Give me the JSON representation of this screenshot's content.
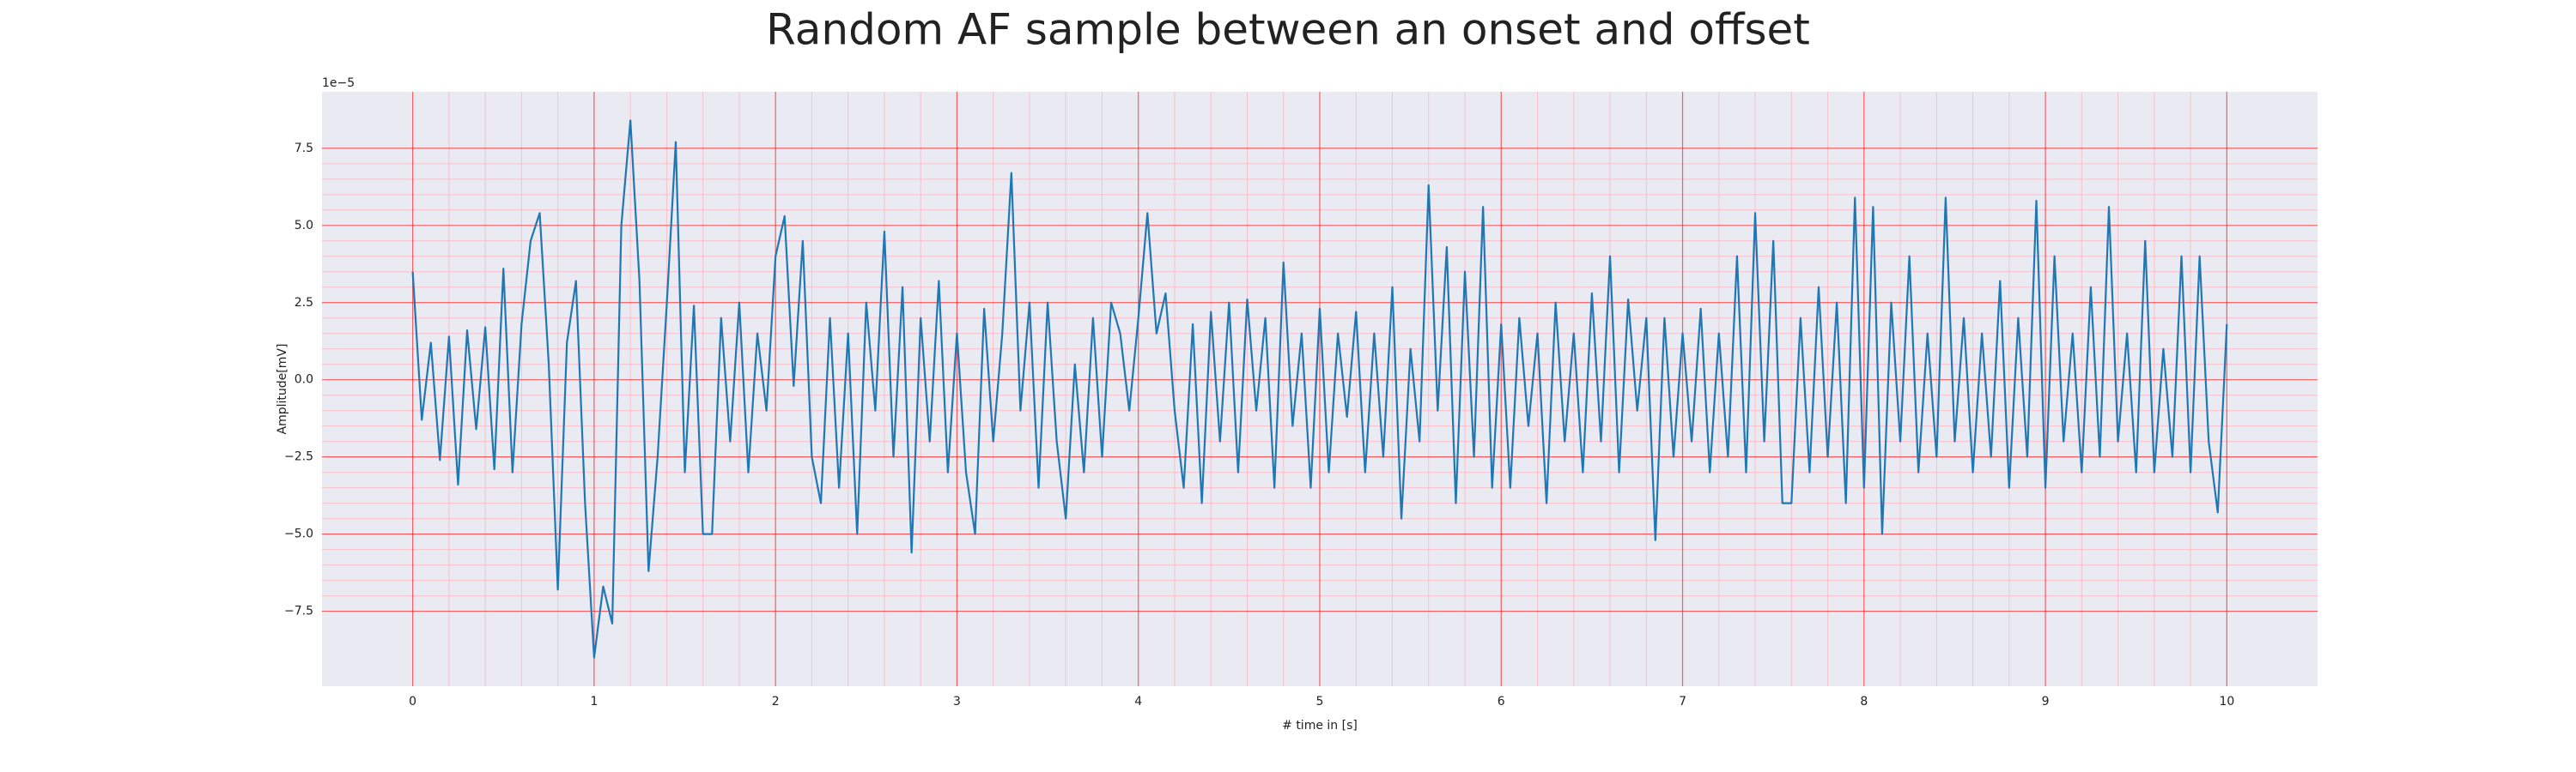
{
  "chart_data": {
    "type": "line",
    "title": "Random AF sample between an onset and offset",
    "xlabel": "# time in [s]",
    "ylabel": "Amplitude[mV]",
    "y_offset_label": "1e−5",
    "x": [
      0,
      0.05,
      0.1,
      0.15,
      0.2,
      0.25,
      0.3,
      0.35,
      0.4,
      0.45,
      0.5,
      0.55,
      0.6,
      0.65,
      0.7,
      0.75,
      0.8,
      0.85,
      0.9,
      0.95,
      1,
      1.05,
      1.1,
      1.15,
      1.2,
      1.25,
      1.3,
      1.35,
      1.4,
      1.45,
      1.5,
      1.55,
      1.6,
      1.65,
      1.7,
      1.75,
      1.8,
      1.85,
      1.9,
      1.95,
      2,
      2.05,
      2.1,
      2.15,
      2.2,
      2.25,
      2.3,
      2.35,
      2.4,
      2.45,
      2.5,
      2.55,
      2.6,
      2.65,
      2.7,
      2.75,
      2.8,
      2.85,
      2.9,
      2.95,
      3,
      3.05,
      3.1,
      3.15,
      3.2,
      3.25,
      3.3,
      3.35,
      3.4,
      3.45,
      3.5,
      3.55,
      3.6,
      3.65,
      3.7,
      3.75,
      3.8,
      3.85,
      3.9,
      3.95,
      4,
      4.05,
      4.1,
      4.15,
      4.2,
      4.25,
      4.3,
      4.35,
      4.4,
      4.45,
      4.5,
      4.55,
      4.6,
      4.65,
      4.7,
      4.75,
      4.8,
      4.85,
      4.9,
      4.95,
      5,
      5.05,
      5.1,
      5.15,
      5.2,
      5.25,
      5.3,
      5.35,
      5.4,
      5.45,
      5.5,
      5.55,
      5.6,
      5.65,
      5.7,
      5.75,
      5.8,
      5.85,
      5.9,
      5.95,
      6,
      6.05,
      6.1,
      6.15,
      6.2,
      6.25,
      6.3,
      6.35,
      6.4,
      6.45,
      6.5,
      6.55,
      6.6,
      6.65,
      6.7,
      6.75,
      6.8,
      6.85,
      6.9,
      6.95,
      7,
      7.05,
      7.1,
      7.15,
      7.2,
      7.25,
      7.3,
      7.35,
      7.4,
      7.45,
      7.5,
      7.55,
      7.6,
      7.65,
      7.7,
      7.75,
      7.8,
      7.85,
      7.9,
      7.95,
      8,
      8.05,
      8.1,
      8.15,
      8.2,
      8.25,
      8.3,
      8.35,
      8.4,
      8.45,
      8.5,
      8.55,
      8.6,
      8.65,
      8.7,
      8.75,
      8.8,
      8.85,
      8.9,
      8.95,
      9,
      9.05,
      9.1,
      9.15,
      9.2,
      9.25,
      9.3,
      9.35,
      9.4,
      9.45,
      9.5,
      9.55,
      9.6,
      9.65,
      9.7,
      9.75,
      9.8,
      9.85,
      9.9,
      9.95,
      10
    ],
    "series": [
      {
        "color": "#1f77b4",
        "values": [
          3.5,
          -1.3,
          1.2,
          -2.6,
          1.4,
          -3.4,
          1.6,
          -1.6,
          1.7,
          -2.9,
          3.6,
          -3.0,
          1.8,
          4.5,
          5.4,
          0.5,
          -6.8,
          1.2,
          3.2,
          -4.0,
          -9.0,
          -6.7,
          -7.9,
          5.0,
          8.4,
          3.2,
          -6.2,
          -2.5,
          2.4,
          7.7,
          -3.0,
          2.4,
          -5.0,
          -5.0,
          2.0,
          -2.0,
          2.5,
          -3.0,
          1.5,
          -1.0,
          4.0,
          5.3,
          -0.2,
          4.5,
          -2.5,
          -4.0,
          2.0,
          -3.5,
          1.5,
          -5.0,
          2.5,
          -1.0,
          4.8,
          -2.5,
          3.0,
          -5.6,
          2.0,
          -2.0,
          3.2,
          -3.0,
          1.5,
          -3.0,
          -5.0,
          2.3,
          -2.0,
          1.5,
          6.7,
          -1.0,
          2.5,
          -3.5,
          2.5,
          -2.0,
          -4.5,
          0.5,
          -3.0,
          2.0,
          -2.5,
          2.5,
          1.5,
          -1.0,
          2.0,
          5.4,
          1.5,
          2.8,
          -1.0,
          -3.5,
          1.8,
          -4.0,
          2.2,
          -2.0,
          2.5,
          -3.0,
          2.6,
          -1.0,
          2.0,
          -3.5,
          3.8,
          -1.5,
          1.5,
          -3.5,
          2.3,
          -3.0,
          1.5,
          -1.2,
          2.2,
          -3.0,
          1.5,
          -2.5,
          3.0,
          -4.5,
          1.0,
          -2.0,
          6.3,
          -1.0,
          4.3,
          -4.0,
          3.5,
          -2.5,
          5.6,
          -3.5,
          1.8,
          -3.5,
          2.0,
          -1.5,
          1.5,
          -4.0,
          2.5,
          -2.0,
          1.5,
          -3.0,
          2.8,
          -2.0,
          4.0,
          -3.0,
          2.6,
          -1.0,
          2.0,
          -5.2,
          2.0,
          -2.5,
          1.5,
          -2.0,
          2.3,
          -3.0,
          1.5,
          -2.5,
          4.0,
          -3.0,
          5.4,
          -2.0,
          4.5,
          -4.0,
          -4.0,
          2.0,
          -3.0,
          3.0,
          -2.5,
          2.5,
          -4.0,
          5.9,
          -3.5,
          5.6,
          -5.0,
          2.5,
          -2.0,
          4.0,
          -3.0,
          1.5,
          -2.5,
          5.9,
          -2.0,
          2.0,
          -3.0,
          1.5,
          -2.5,
          3.2,
          -3.5,
          2.0,
          -2.5,
          5.8,
          -3.5,
          4.0,
          -2.0,
          1.5,
          -3.0,
          3.0,
          -2.5,
          5.6,
          -2.0,
          1.5,
          -3.0,
          4.5,
          -3.0,
          1.0,
          -2.5,
          4.0,
          -3.0,
          4.0,
          -2.0,
          -4.3,
          1.8
        ]
      }
    ],
    "xlim": [
      -0.5,
      10.5
    ],
    "xticks": [
      0,
      1,
      2,
      3,
      4,
      5,
      6,
      7,
      8,
      9,
      10
    ],
    "ylim": [
      -9.93,
      9.33
    ],
    "yticks": [
      {
        "value": -7.5,
        "label": "−7.5"
      },
      {
        "value": -5,
        "label": "−5.0"
      },
      {
        "value": -2.5,
        "label": "−2.5"
      },
      {
        "value": 0,
        "label": "0.0"
      },
      2.5,
      {
        "value": 5,
        "label": "5.0"
      },
      7.5
    ],
    "grid": true,
    "grid_color": "#ff0000",
    "minor_grid_color": "#ffb6c1",
    "background": "#eaeaf2"
  }
}
